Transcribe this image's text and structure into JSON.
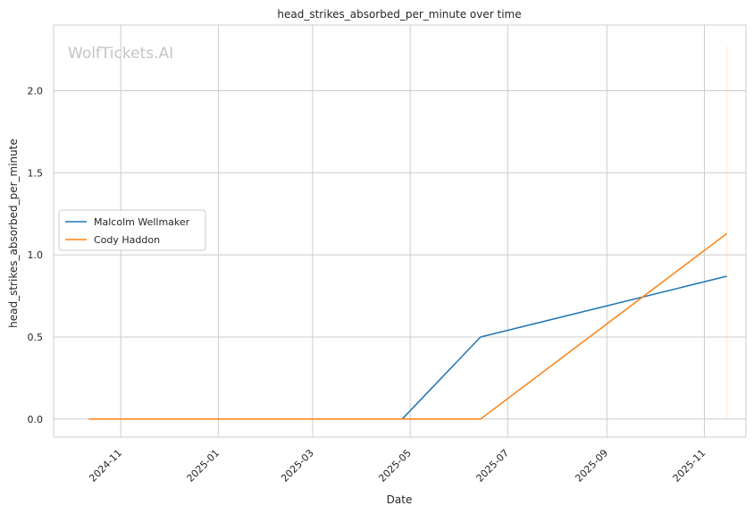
{
  "chart_data": {
    "type": "line",
    "title": "head_strikes_absorbed_per_minute over time",
    "xlabel": "Date",
    "ylabel": "head_strikes_absorbed_per_minute",
    "watermark": "WolfTickets.AI",
    "grid": true,
    "legend_position": "center-left",
    "xlim": [
      "2024-09-20",
      "2025-11-27"
    ],
    "ylim": [
      -0.11,
      2.4
    ],
    "x_ticks": [
      "2024-11",
      "2025-01",
      "2025-03",
      "2025-05",
      "2025-07",
      "2025-09",
      "2025-11"
    ],
    "y_ticks": [
      "0.0",
      "0.5",
      "1.0",
      "1.5",
      "2.0"
    ],
    "series": [
      {
        "name": "Malcolm Wellmaker",
        "color": "#1f77b4",
        "points": [
          {
            "x": "2024-10-12",
            "y": 0.0
          },
          {
            "x": "2025-04-26",
            "y": 0.0
          },
          {
            "x": "2025-06-14",
            "y": 0.5
          },
          {
            "x": "2025-11-15",
            "y": 0.87
          }
        ]
      },
      {
        "name": "Cody Haddon",
        "color": "#ff7f0e",
        "points": [
          {
            "x": "2024-10-12",
            "y": 0.0
          },
          {
            "x": "2025-06-14",
            "y": 0.0
          },
          {
            "x": "2025-11-15",
            "y": 1.13
          }
        ]
      }
    ]
  }
}
